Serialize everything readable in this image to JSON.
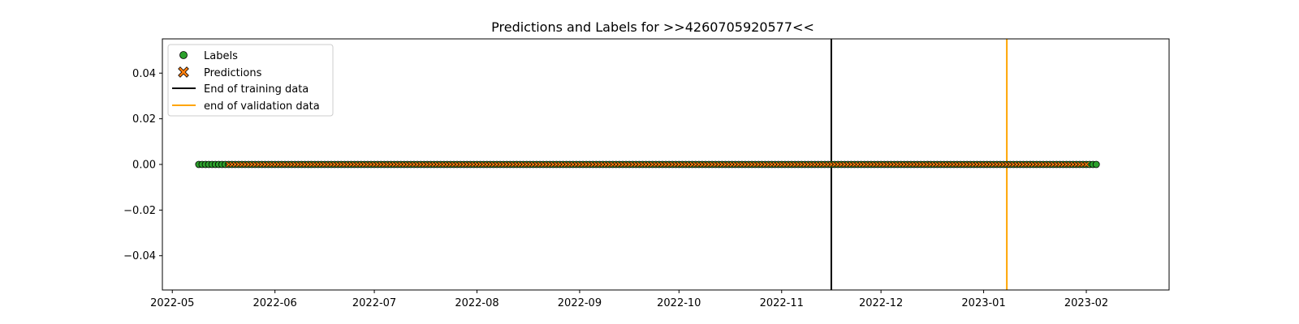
{
  "chart_data": {
    "type": "scatter",
    "title": "Predictions and Labels for >>4260705920577<<",
    "xlabel": "",
    "ylabel": "",
    "xlim": [
      "2022-04-28",
      "2023-02-26"
    ],
    "ylim": [
      -0.055,
      0.055
    ],
    "x_ticks": [
      "2022-05",
      "2022-06",
      "2022-07",
      "2022-08",
      "2022-09",
      "2022-10",
      "2022-11",
      "2022-12",
      "2023-01",
      "2023-02"
    ],
    "y_ticks": [
      "0.04",
      "0.02",
      "0.00",
      "−0.02",
      "−0.04"
    ],
    "y_tick_values": [
      0.04,
      0.02,
      0.0,
      -0.02,
      -0.04
    ],
    "grid": false,
    "legend_position": "upper-left",
    "series": [
      {
        "name": "Labels",
        "marker": "circle",
        "color": "#2ca02c",
        "x_range": [
          "2022-05-09",
          "2023-02-04"
        ],
        "y": 0.0,
        "count": 272
      },
      {
        "name": "Predictions",
        "marker": "x",
        "color": "#ff7f0e",
        "x_range": [
          "2022-05-18",
          "2023-02-01"
        ],
        "y": 0.0,
        "count": 260
      }
    ],
    "vertical_lines": [
      {
        "name": "End of training data",
        "x": "2022-11-16",
        "color": "#000000"
      },
      {
        "name": "end of validation data",
        "x": "2023-01-08",
        "color": "#ffa500"
      }
    ]
  }
}
